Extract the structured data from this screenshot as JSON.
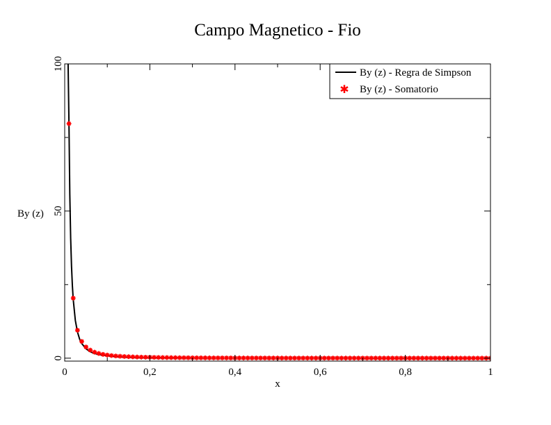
{
  "chart_data": {
    "type": "line",
    "title": "Campo Magnetico - Fio",
    "xlabel": "x",
    "ylabel": "By (z)",
    "xlim": [
      0,
      1
    ],
    "ylim": [
      -1,
      100
    ],
    "x_ticks": [
      0,
      0.2,
      0.4,
      0.6,
      0.8,
      1
    ],
    "x_tick_labels": [
      "0",
      "0,2",
      "0,4",
      "0,6",
      "0,8",
      "1"
    ],
    "y_ticks": [
      0,
      50,
      100
    ],
    "y_tick_labels": [
      "0",
      "50",
      "100"
    ],
    "y_minor_ticks": [
      25,
      75
    ],
    "grid": false,
    "legend_position": "top-right",
    "series": [
      {
        "name": "By (z) - Regra de Simpson",
        "style": "line",
        "color": "#000000",
        "x": [
          0.008,
          0.01,
          0.012,
          0.014,
          0.016,
          0.018,
          0.02,
          0.025,
          0.03,
          0.035,
          0.04,
          0.05,
          0.06,
          0.07,
          0.08,
          0.1,
          0.12,
          0.15,
          0.2,
          0.25,
          0.3,
          0.4,
          0.5,
          0.6,
          0.7,
          0.8,
          0.9,
          1.0
        ],
        "y": [
          100,
          80,
          55.6,
          40.8,
          31.3,
          24.7,
          20,
          12.8,
          8.9,
          6.5,
          5,
          3.2,
          2.2,
          1.6,
          1.25,
          0.8,
          0.56,
          0.36,
          0.2,
          0.13,
          0.09,
          0.05,
          0.032,
          0.022,
          0.016,
          0.0125,
          0.01,
          0.008
        ]
      },
      {
        "name": "By (z) - Somatorio",
        "style": "markers",
        "color": "#ff0000",
        "x": [
          0.01,
          0.02,
          0.03,
          0.04,
          0.05,
          0.06,
          0.07,
          0.08,
          0.09,
          0.1,
          0.11,
          0.12,
          0.13,
          0.14,
          0.15,
          0.16,
          0.17,
          0.18,
          0.19,
          0.2,
          0.21,
          0.22,
          0.23,
          0.24,
          0.25,
          0.26,
          0.27,
          0.28,
          0.29,
          0.3,
          0.31,
          0.32,
          0.33,
          0.34,
          0.35,
          0.36,
          0.37,
          0.38,
          0.39,
          0.4,
          0.41,
          0.42,
          0.43,
          0.44,
          0.45,
          0.46,
          0.47,
          0.48,
          0.49,
          0.5,
          0.51,
          0.52,
          0.53,
          0.54,
          0.55,
          0.56,
          0.57,
          0.58,
          0.59,
          0.6,
          0.61,
          0.62,
          0.63,
          0.64,
          0.65,
          0.66,
          0.67,
          0.68,
          0.69,
          0.7,
          0.71,
          0.72,
          0.73,
          0.74,
          0.75,
          0.76,
          0.77,
          0.78,
          0.79,
          0.8,
          0.81,
          0.82,
          0.83,
          0.84,
          0.85,
          0.86,
          0.87,
          0.88,
          0.89,
          0.9,
          0.91,
          0.92,
          0.93,
          0.94,
          0.95,
          0.96,
          0.97,
          0.98,
          0.99,
          1.0
        ],
        "y": [
          79.7,
          20.4,
          9.5,
          5.7,
          3.8,
          2.75,
          2.05,
          1.6,
          1.29,
          1.06,
          0.88,
          0.75,
          0.65,
          0.56,
          0.5,
          0.44,
          0.39,
          0.35,
          0.32,
          0.29,
          0.26,
          0.24,
          0.22,
          0.2,
          0.19,
          0.17,
          0.16,
          0.15,
          0.14,
          0.13,
          0.12,
          0.115,
          0.108,
          0.101,
          0.095,
          0.09,
          0.085,
          0.08,
          0.076,
          0.072,
          0.068,
          0.065,
          0.062,
          0.059,
          0.056,
          0.054,
          0.052,
          0.049,
          0.047,
          0.045,
          0.044,
          0.042,
          0.04,
          0.039,
          0.037,
          0.036,
          0.035,
          0.034,
          0.032,
          0.031,
          0.03,
          0.029,
          0.028,
          0.027,
          0.027,
          0.026,
          0.025,
          0.024,
          0.024,
          0.023,
          0.022,
          0.022,
          0.021,
          0.02,
          0.02,
          0.019,
          0.019,
          0.018,
          0.018,
          0.017,
          0.017,
          0.017,
          0.016,
          0.016,
          0.015,
          0.015,
          0.015,
          0.014,
          0.014,
          0.014,
          0.013,
          0.013,
          0.013,
          0.013,
          0.012,
          0.012,
          0.012,
          0.012,
          0.011,
          0.011
        ]
      }
    ]
  }
}
